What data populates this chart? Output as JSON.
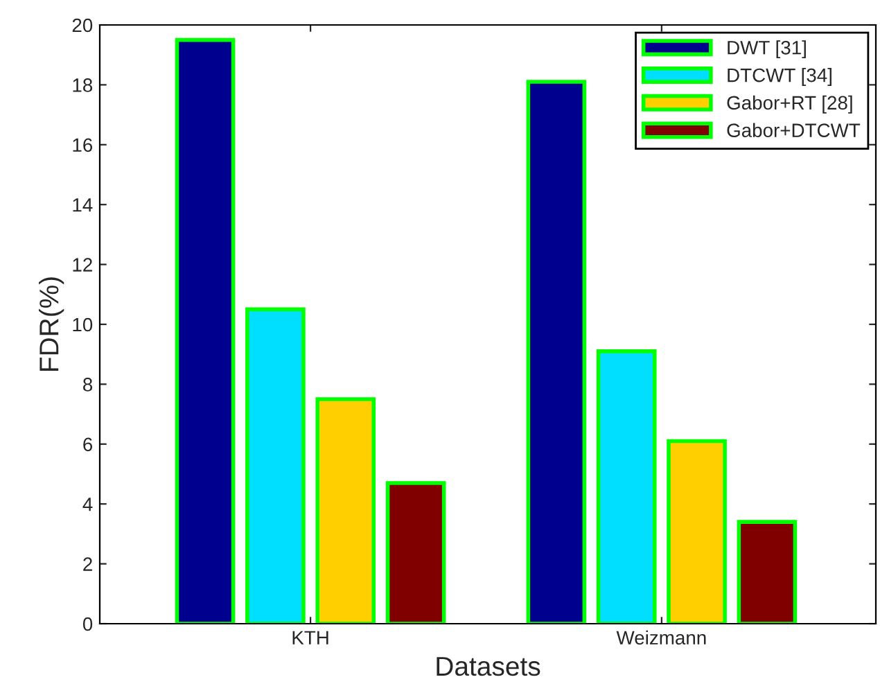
{
  "chart_data": {
    "type": "bar",
    "xlabel": "Datasets",
    "ylabel": "FDR(%)",
    "categories": [
      "KTH",
      "Weizmann"
    ],
    "series": [
      {
        "name": "DWT [31]",
        "color": "#00008f",
        "values": [
          19.5,
          18.1
        ]
      },
      {
        "name": "DTCWT [34]",
        "color": "#00dfff",
        "values": [
          10.5,
          9.1
        ]
      },
      {
        "name": "Gabor+RT [28]",
        "color": "#ffcf00",
        "values": [
          7.5,
          6.1
        ]
      },
      {
        "name": "Gabor+DTCWT",
        "color": "#800000",
        "values": [
          4.7,
          3.4
        ]
      }
    ],
    "ylim": [
      0,
      20
    ],
    "yticks": [
      0,
      2,
      4,
      6,
      8,
      10,
      12,
      14,
      16,
      18,
      20
    ],
    "grid": false,
    "legend": "top right"
  }
}
